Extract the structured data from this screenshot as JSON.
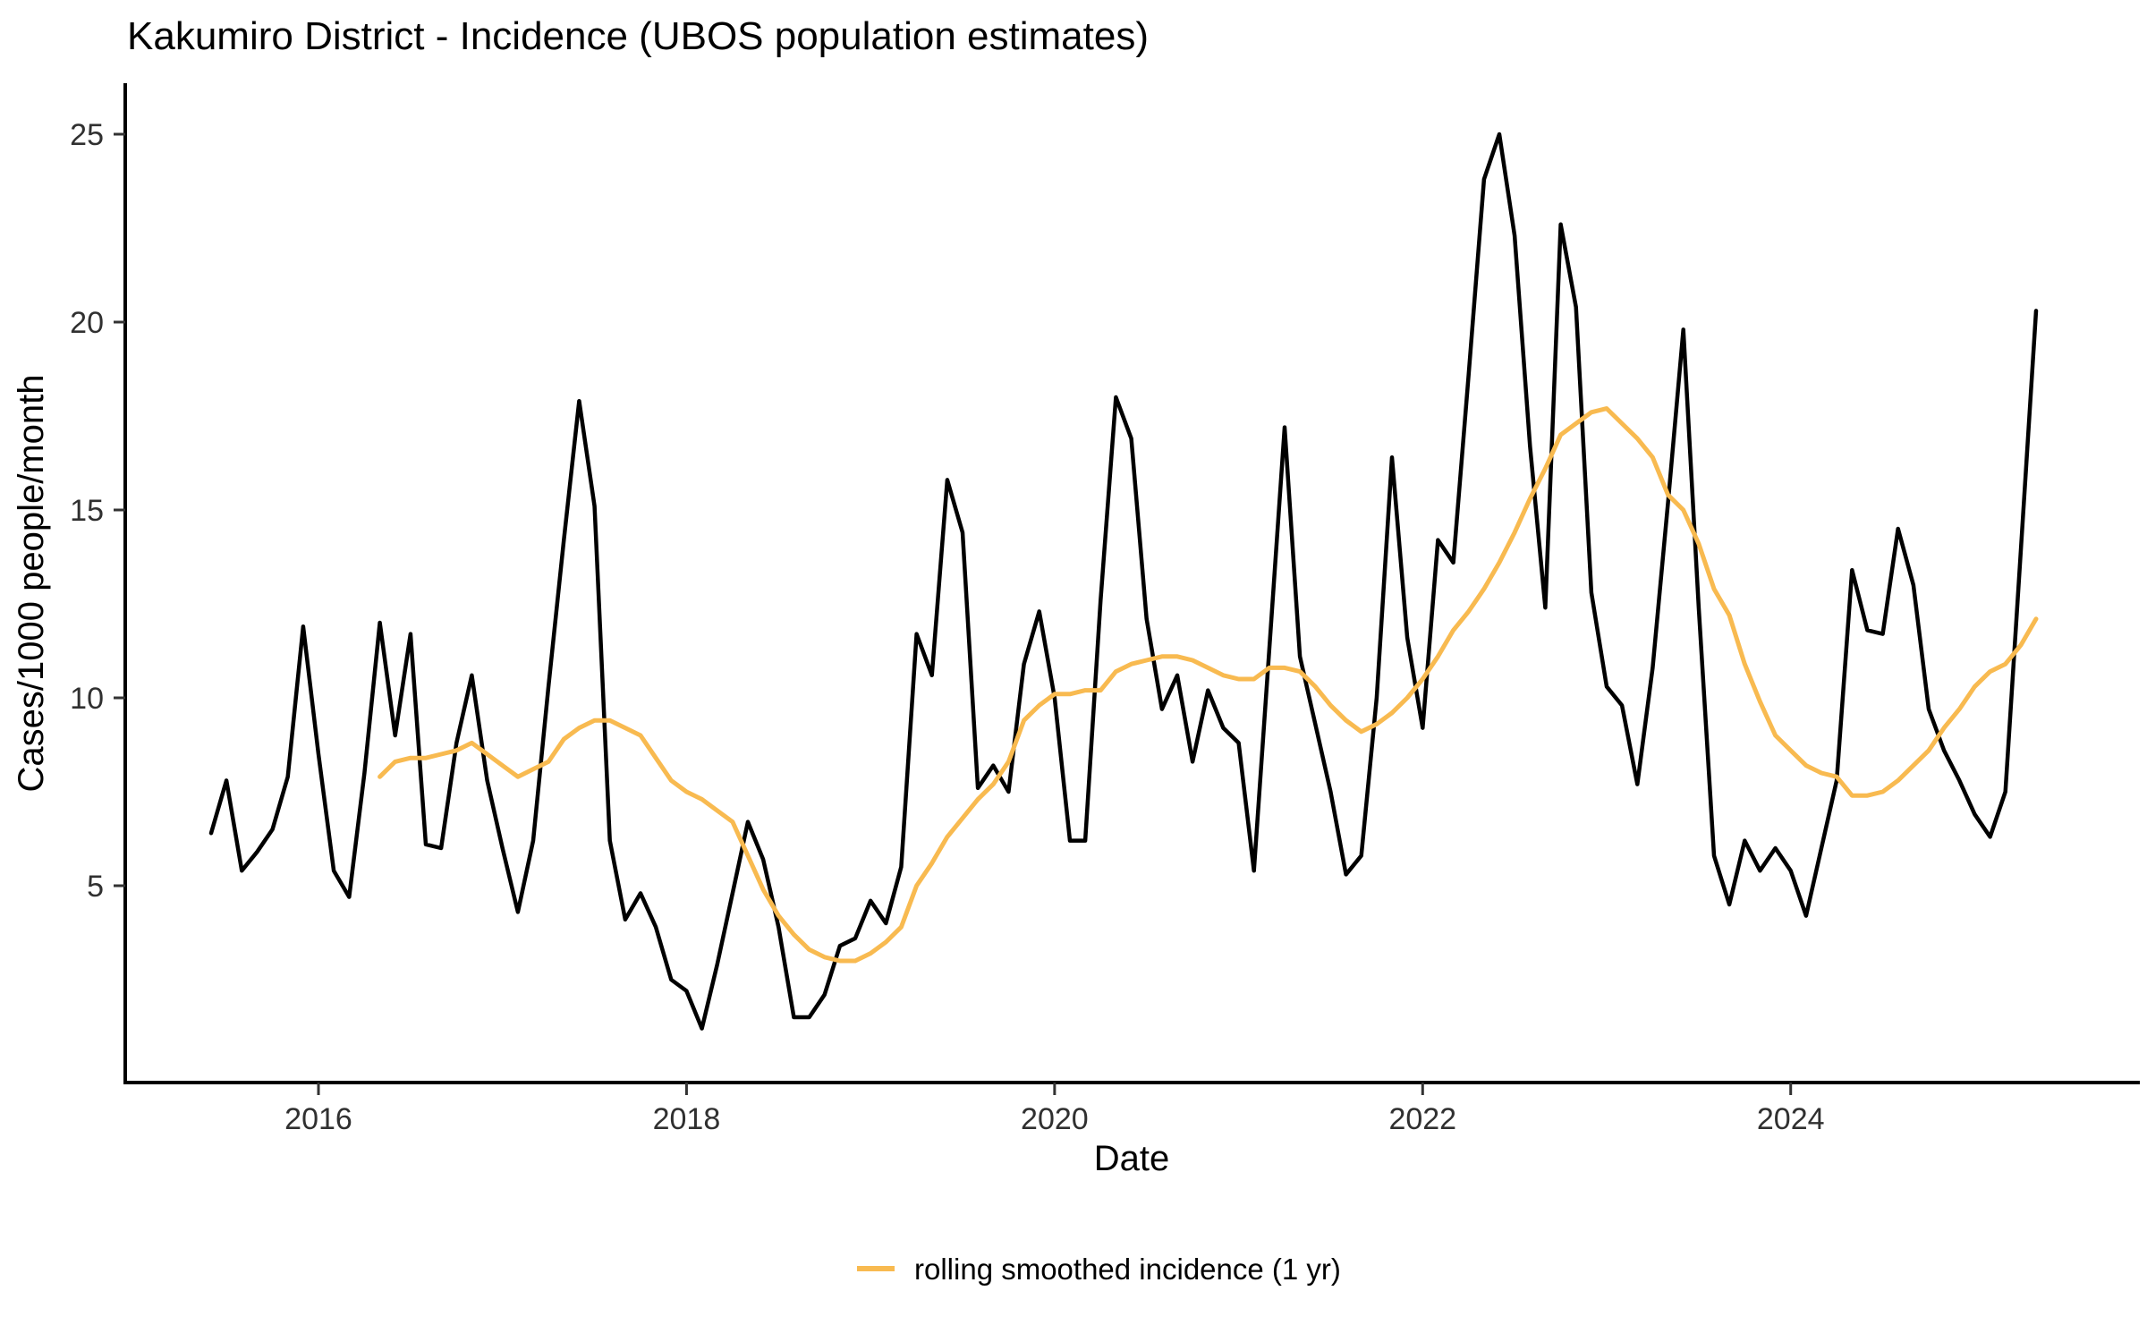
{
  "title": "Kakumiro District - Incidence (UBOS population estimates)",
  "legend": {
    "label": "rolling smoothed incidence (1 yr)",
    "swatch_color": "#F8BA50"
  },
  "chart_data": {
    "type": "line",
    "title": "Kakumiro District - Incidence (UBOS population estimates)",
    "xlabel": "Date",
    "ylabel": "Cases/1000 people/month",
    "x_tick_years": [
      2016,
      2018,
      2020,
      2022,
      2024
    ],
    "y_ticks": [
      5,
      10,
      15,
      20,
      25
    ],
    "ylim": [
      0,
      26.5
    ],
    "x_domain_months": [
      "2015-06",
      "2025-05"
    ],
    "grid": false,
    "legend_position": "bottom",
    "series": [
      {
        "name": "monthly incidence",
        "color": "#000000",
        "stroke_width": 4.5,
        "start_month": "2015-06",
        "values": [
          6.4,
          7.8,
          5.4,
          5.9,
          6.5,
          7.9,
          11.9,
          8.5,
          5.4,
          4.7,
          8.0,
          12.0,
          9.0,
          11.7,
          6.1,
          6.0,
          8.8,
          10.6,
          7.8,
          6.0,
          4.3,
          6.2,
          10.3,
          14.2,
          17.9,
          15.1,
          6.2,
          4.1,
          4.8,
          3.9,
          2.5,
          2.2,
          1.2,
          2.9,
          4.8,
          6.7,
          5.7,
          3.9,
          1.5,
          1.5,
          2.1,
          3.4,
          3.6,
          4.6,
          4.0,
          5.5,
          11.7,
          10.6,
          15.8,
          14.4,
          7.6,
          8.2,
          7.5,
          10.9,
          12.3,
          10.0,
          6.2,
          6.2,
          12.6,
          18.0,
          16.9,
          12.1,
          9.7,
          10.6,
          8.3,
          10.2,
          9.2,
          8.8,
          5.4,
          11.3,
          17.2,
          11.1,
          9.3,
          7.5,
          5.3,
          5.8,
          10.0,
          16.4,
          11.6,
          9.2,
          14.2,
          13.6,
          18.6,
          23.8,
          25.0,
          22.3,
          16.7,
          12.4,
          22.6,
          20.4,
          12.8,
          10.3,
          9.8,
          7.7,
          10.8,
          15.2,
          19.8,
          12.4,
          5.8,
          4.5,
          6.2,
          5.4,
          6.0,
          5.4,
          4.2,
          6.0,
          7.8,
          13.4,
          11.8,
          11.7,
          14.5,
          13.0,
          9.7,
          8.6,
          7.8,
          6.9,
          6.3,
          7.5,
          13.9,
          20.3
        ]
      },
      {
        "name": "rolling smoothed incidence (1 yr)",
        "color": "#F8BA50",
        "stroke_width": 5,
        "start_month": "2016-05",
        "values": [
          7.9,
          8.3,
          8.4,
          8.4,
          8.5,
          8.6,
          8.8,
          8.5,
          8.2,
          7.9,
          8.1,
          8.3,
          8.9,
          9.2,
          9.4,
          9.4,
          9.2,
          9.0,
          8.4,
          7.8,
          7.5,
          7.3,
          7.0,
          6.7,
          5.8,
          4.9,
          4.2,
          3.7,
          3.3,
          3.1,
          3.0,
          3.0,
          3.2,
          3.5,
          3.9,
          5.0,
          5.6,
          6.3,
          6.8,
          7.3,
          7.7,
          8.3,
          9.4,
          9.8,
          10.1,
          10.1,
          10.2,
          10.2,
          10.7,
          10.9,
          11.0,
          11.1,
          11.1,
          11.0,
          10.8,
          10.6,
          10.5,
          10.5,
          10.8,
          10.8,
          10.7,
          10.3,
          9.8,
          9.4,
          9.1,
          9.3,
          9.6,
          10.0,
          10.5,
          11.1,
          11.8,
          12.3,
          12.9,
          13.6,
          14.4,
          15.3,
          16.1,
          17.0,
          17.3,
          17.6,
          17.7,
          17.3,
          16.9,
          16.4,
          15.4,
          15.0,
          14.1,
          12.9,
          12.2,
          10.9,
          9.9,
          9.0,
          8.6,
          8.2,
          8.0,
          7.9,
          7.4,
          7.4,
          7.5,
          7.8,
          8.2,
          8.6,
          9.2,
          9.7,
          10.3,
          10.7,
          10.9,
          11.4,
          12.1
        ]
      }
    ]
  }
}
